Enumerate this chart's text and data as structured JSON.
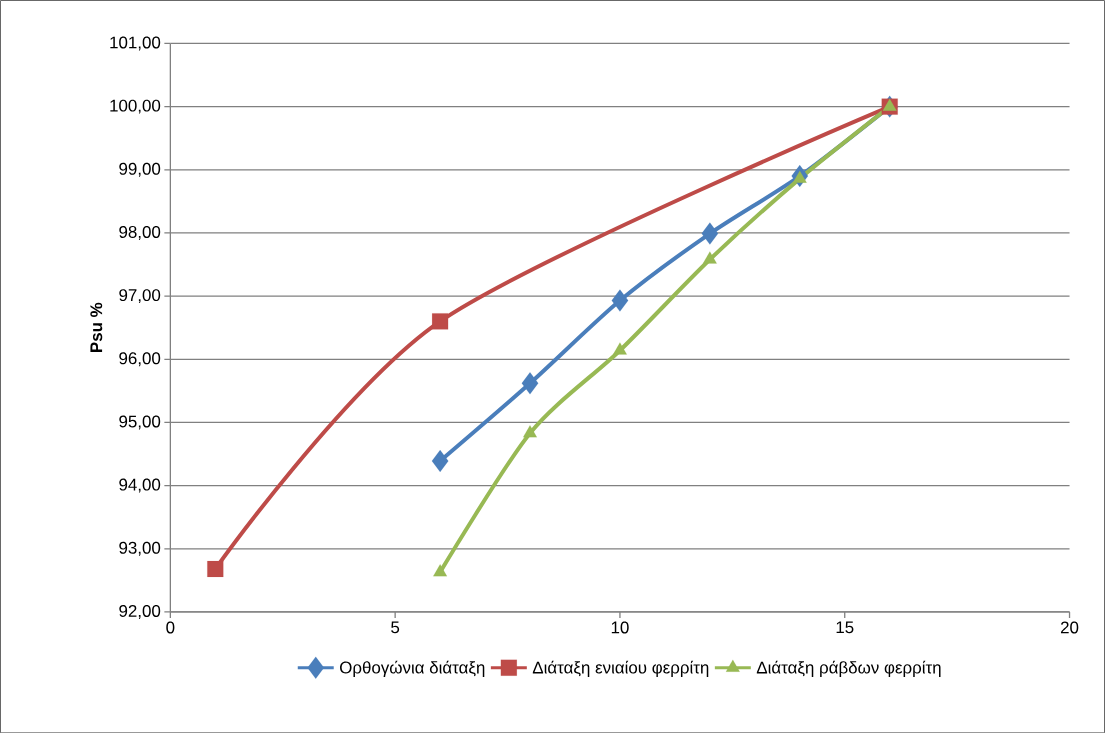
{
  "chart_data": {
    "type": "line",
    "ylabel": "Psu %",
    "series": [
      {
        "name": "Ορθογώνια διάταξη",
        "color": "#4a7ebb",
        "marker": "diamond",
        "x": [
          6,
          8,
          10,
          12,
          14,
          16
        ],
        "values": [
          94.39,
          95.62,
          96.93,
          97.99,
          98.9,
          100.0
        ]
      },
      {
        "name": "Διάταξη ενιαίου φερρίτη",
        "color": "#be4b48",
        "marker": "square",
        "x": [
          1,
          6,
          16
        ],
        "values": [
          92.68,
          96.6,
          100.0
        ]
      },
      {
        "name": "Διάταξη ράβδων φερρίτη",
        "color": "#98b954",
        "marker": "triangle",
        "x": [
          6,
          8,
          10,
          12,
          14,
          16
        ],
        "values": [
          92.63,
          94.83,
          96.14,
          97.58,
          98.86,
          100.0
        ]
      }
    ],
    "xlim": [
      0,
      20
    ],
    "xticks": [
      0,
      5,
      10,
      15,
      20
    ],
    "ylim": [
      92,
      101
    ],
    "yticks": [
      {
        "value": 92,
        "label": "92,00"
      },
      {
        "value": 93,
        "label": "93,00"
      },
      {
        "value": 94,
        "label": "94,00"
      },
      {
        "value": 95,
        "label": "95,00"
      },
      {
        "value": 96,
        "label": "96,00"
      },
      {
        "value": 97,
        "label": "97,00"
      },
      {
        "value": 98,
        "label": "98,00"
      },
      {
        "value": 99,
        "label": "99,00"
      },
      {
        "value": 100,
        "label": "100,00"
      },
      {
        "value": 101,
        "label": "101,00"
      }
    ],
    "grid": "y",
    "legend": "bottom",
    "line_style": "solid"
  }
}
